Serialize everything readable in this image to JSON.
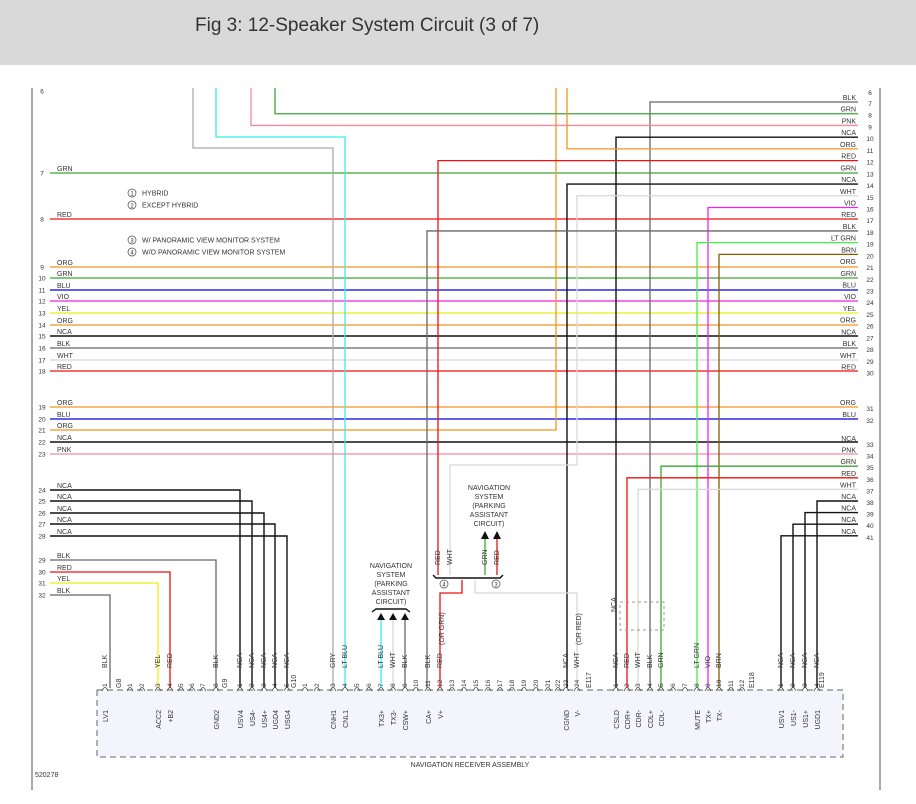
{
  "header": {
    "title": "Fig 3: 12-Speaker System Circuit (3 of 7)"
  },
  "colors": {
    "BLK": "#666666",
    "NCA": "#111111",
    "GRN": "#3fa535",
    "PNK": "#f28aa0",
    "ORG": "#f7941d",
    "RED": "#ee1111",
    "WHT": "#d8d8d8",
    "VIO": "#ee22ee",
    "LT GRN": "#44ee44",
    "BRN": "#8b5a00",
    "BLU": "#0000dd",
    "YEL": "#eeee11",
    "GRY": "#aaaaaa",
    "LT BLU": "#33eeee"
  },
  "notes": [
    {
      "mark": "1",
      "text": "HYBRID"
    },
    {
      "mark": "2",
      "text": "EXCEPT HYBRID"
    },
    {
      "mark": "3",
      "text": "W/ PANORAMIC VIEW MONITOR SYSTEM"
    },
    {
      "mark": "4",
      "text": "W/O PANORAMIC VIEW MONITOR SYSTEM"
    }
  ],
  "left_rows": [
    {
      "num": "6",
      "wire": ""
    },
    {
      "num": "7",
      "wire": "GRN"
    },
    {
      "num": "8",
      "wire": "RED"
    },
    {
      "num": "9",
      "wire": "ORG"
    },
    {
      "num": "10",
      "wire": "GRN"
    },
    {
      "num": "11",
      "wire": "BLU"
    },
    {
      "num": "12",
      "wire": "VIO"
    },
    {
      "num": "13",
      "wire": "YEL"
    },
    {
      "num": "14",
      "wire": "ORG"
    },
    {
      "num": "15",
      "wire": "NCA"
    },
    {
      "num": "16",
      "wire": "BLK"
    },
    {
      "num": "17",
      "wire": "WHT"
    },
    {
      "num": "18",
      "wire": "RED"
    },
    {
      "num": "19",
      "wire": "ORG"
    },
    {
      "num": "20",
      "wire": "BLU"
    },
    {
      "num": "21",
      "wire": "ORG"
    },
    {
      "num": "22",
      "wire": "NCA"
    },
    {
      "num": "23",
      "wire": "PNK"
    },
    {
      "num": "24",
      "wire": "NCA"
    },
    {
      "num": "25",
      "wire": "NCA"
    },
    {
      "num": "26",
      "wire": "NCA"
    },
    {
      "num": "27",
      "wire": "NCA"
    },
    {
      "num": "28",
      "wire": "NCA"
    },
    {
      "num": "29",
      "wire": "BLK"
    },
    {
      "num": "30",
      "wire": "RED"
    },
    {
      "num": "31",
      "wire": "YEL"
    },
    {
      "num": "32",
      "wire": "BLK"
    }
  ],
  "right_rows": [
    {
      "num": "6",
      "wire": ""
    },
    {
      "num": "7",
      "wire": "BLK"
    },
    {
      "num": "8",
      "wire": "GRN"
    },
    {
      "num": "9",
      "wire": "PNK"
    },
    {
      "num": "10",
      "wire": "NCA"
    },
    {
      "num": "11",
      "wire": "ORG"
    },
    {
      "num": "12",
      "wire": "RED"
    },
    {
      "num": "13",
      "wire": "GRN"
    },
    {
      "num": "14",
      "wire": "NCA"
    },
    {
      "num": "15",
      "wire": "WHT"
    },
    {
      "num": "16",
      "wire": "VIO"
    },
    {
      "num": "17",
      "wire": "RED"
    },
    {
      "num": "18",
      "wire": "BLK"
    },
    {
      "num": "19",
      "wire": "LT GRN"
    },
    {
      "num": "20",
      "wire": "BRN"
    },
    {
      "num": "21",
      "wire": "ORG"
    },
    {
      "num": "22",
      "wire": "GRN"
    },
    {
      "num": "23",
      "wire": "BLU"
    },
    {
      "num": "24",
      "wire": "VIO"
    },
    {
      "num": "25",
      "wire": "YEL"
    },
    {
      "num": "26",
      "wire": "ORG"
    },
    {
      "num": "27",
      "wire": "NCA"
    },
    {
      "num": "28",
      "wire": "BLK"
    },
    {
      "num": "29",
      "wire": "WHT"
    },
    {
      "num": "30",
      "wire": "RED"
    },
    {
      "num": "31",
      "wire": "ORG"
    },
    {
      "num": "32",
      "wire": "BLU"
    },
    {
      "num": "33",
      "wire": "NCA"
    },
    {
      "num": "34",
      "wire": "PNK"
    },
    {
      "num": "35",
      "wire": "GRN"
    },
    {
      "num": "36",
      "wire": "RED"
    },
    {
      "num": "37",
      "wire": "WHT"
    },
    {
      "num": "38",
      "wire": "NCA"
    },
    {
      "num": "39",
      "wire": "NCA"
    },
    {
      "num": "40",
      "wire": "NCA"
    },
    {
      "num": "41",
      "wire": "NCA"
    }
  ],
  "subsystems": [
    {
      "lines": [
        "NAVIGATION",
        "SYSTEM",
        "(PARKING",
        "ASSISTANT",
        "CIRCUIT)"
      ]
    },
    {
      "lines": [
        "NAVIGATION",
        "SYSTEM",
        "(PARKING",
        "ASSISTANT",
        "CIRCUIT)"
      ]
    }
  ],
  "splice_wires": [
    {
      "wire": "RED",
      "mark": "4"
    },
    {
      "wire": "WHT",
      "mark": ""
    },
    {
      "wire": "GRN",
      "mark": "3"
    },
    {
      "wire": "RED",
      "mark": ""
    }
  ],
  "alt_wires": [
    "(OR GRN)",
    "(OR RED)"
  ],
  "connector_labels": [
    "G8",
    "G9",
    "G10",
    "E117",
    "E118",
    "E119"
  ],
  "pins": [
    {
      "num": "1",
      "wire": "BLK",
      "signal": "LV1"
    },
    {
      "num": "1",
      "wire": "",
      "signal": ""
    },
    {
      "num": "2",
      "wire": "",
      "signal": ""
    },
    {
      "num": "3",
      "wire": "YEL",
      "signal": "ACC2"
    },
    {
      "num": "4",
      "wire": "RED",
      "signal": "+B2"
    },
    {
      "num": "5",
      "wire": "",
      "signal": ""
    },
    {
      "num": "6",
      "wire": "",
      "signal": ""
    },
    {
      "num": "7",
      "wire": "",
      "signal": ""
    },
    {
      "num": "8",
      "wire": "BLK",
      "signal": "GND2"
    },
    {
      "num": "1",
      "wire": "NCA",
      "signal": "USV4"
    },
    {
      "num": "2",
      "wire": "NCA",
      "signal": "US4-"
    },
    {
      "num": "3",
      "wire": "NCA",
      "signal": "US4+"
    },
    {
      "num": "4",
      "wire": "NCA",
      "signal": "UGD4"
    },
    {
      "num": "5",
      "wire": "NCA",
      "signal": "USG4"
    },
    {
      "num": "1",
      "wire": "",
      "signal": ""
    },
    {
      "num": "2",
      "wire": "",
      "signal": ""
    },
    {
      "num": "3",
      "wire": "GRY",
      "signal": "CNH1"
    },
    {
      "num": "4",
      "wire": "LT BLU",
      "signal": "CNL1"
    },
    {
      "num": "5",
      "wire": "",
      "signal": ""
    },
    {
      "num": "6",
      "wire": "",
      "signal": ""
    },
    {
      "num": "7",
      "wire": "LT BLU",
      "signal": "TX3+"
    },
    {
      "num": "8",
      "wire": "WHT",
      "signal": "TX3-"
    },
    {
      "num": "9",
      "wire": "BLK",
      "signal": "CSW+"
    },
    {
      "num": "10",
      "wire": "",
      "signal": ""
    },
    {
      "num": "11",
      "wire": "BLK",
      "signal": "CA+"
    },
    {
      "num": "12",
      "wire": "RED",
      "signal": "V+"
    },
    {
      "num": "13",
      "wire": "",
      "signal": ""
    },
    {
      "num": "14",
      "wire": "",
      "signal": ""
    },
    {
      "num": "15",
      "wire": "",
      "signal": ""
    },
    {
      "num": "16",
      "wire": "",
      "signal": ""
    },
    {
      "num": "17",
      "wire": "",
      "signal": ""
    },
    {
      "num": "18",
      "wire": "",
      "signal": ""
    },
    {
      "num": "19",
      "wire": "",
      "signal": ""
    },
    {
      "num": "20",
      "wire": "",
      "signal": ""
    },
    {
      "num": "21",
      "wire": "",
      "signal": ""
    },
    {
      "num": "22",
      "wire": "",
      "signal": ""
    },
    {
      "num": "23",
      "wire": "NCA",
      "signal": "CGND"
    },
    {
      "num": "24",
      "wire": "WHT",
      "signal": "V-"
    },
    {
      "num": "1",
      "wire": "NCA",
      "signal": "CSLD"
    },
    {
      "num": "2",
      "wire": "RED",
      "signal": "CDR+"
    },
    {
      "num": "3",
      "wire": "WHT",
      "signal": "CDR-"
    },
    {
      "num": "4",
      "wire": "BLK",
      "signal": "CDL+"
    },
    {
      "num": "5",
      "wire": "GRN",
      "signal": "CDL-"
    },
    {
      "num": "6",
      "wire": "",
      "signal": ""
    },
    {
      "num": "7",
      "wire": "",
      "signal": ""
    },
    {
      "num": "8",
      "wire": "LT GRN",
      "signal": "MUTE"
    },
    {
      "num": "9",
      "wire": "VIO",
      "signal": "TX+"
    },
    {
      "num": "10",
      "wire": "BRN",
      "signal": "TX-"
    },
    {
      "num": "11",
      "wire": "",
      "signal": ""
    },
    {
      "num": "12",
      "wire": "",
      "signal": ""
    },
    {
      "num": "1",
      "wire": "NCA",
      "signal": "USV1"
    },
    {
      "num": "2",
      "wire": "NCA",
      "signal": "US1-"
    },
    {
      "num": "3",
      "wire": "NCA",
      "signal": "US1+"
    },
    {
      "num": "4",
      "wire": "NCA",
      "signal": "UGD1"
    }
  ],
  "nca_mid_label": "NCA",
  "assembly_label": "NAVIGATION RECEIVER ASSEMBLY",
  "figure_id": "520278"
}
